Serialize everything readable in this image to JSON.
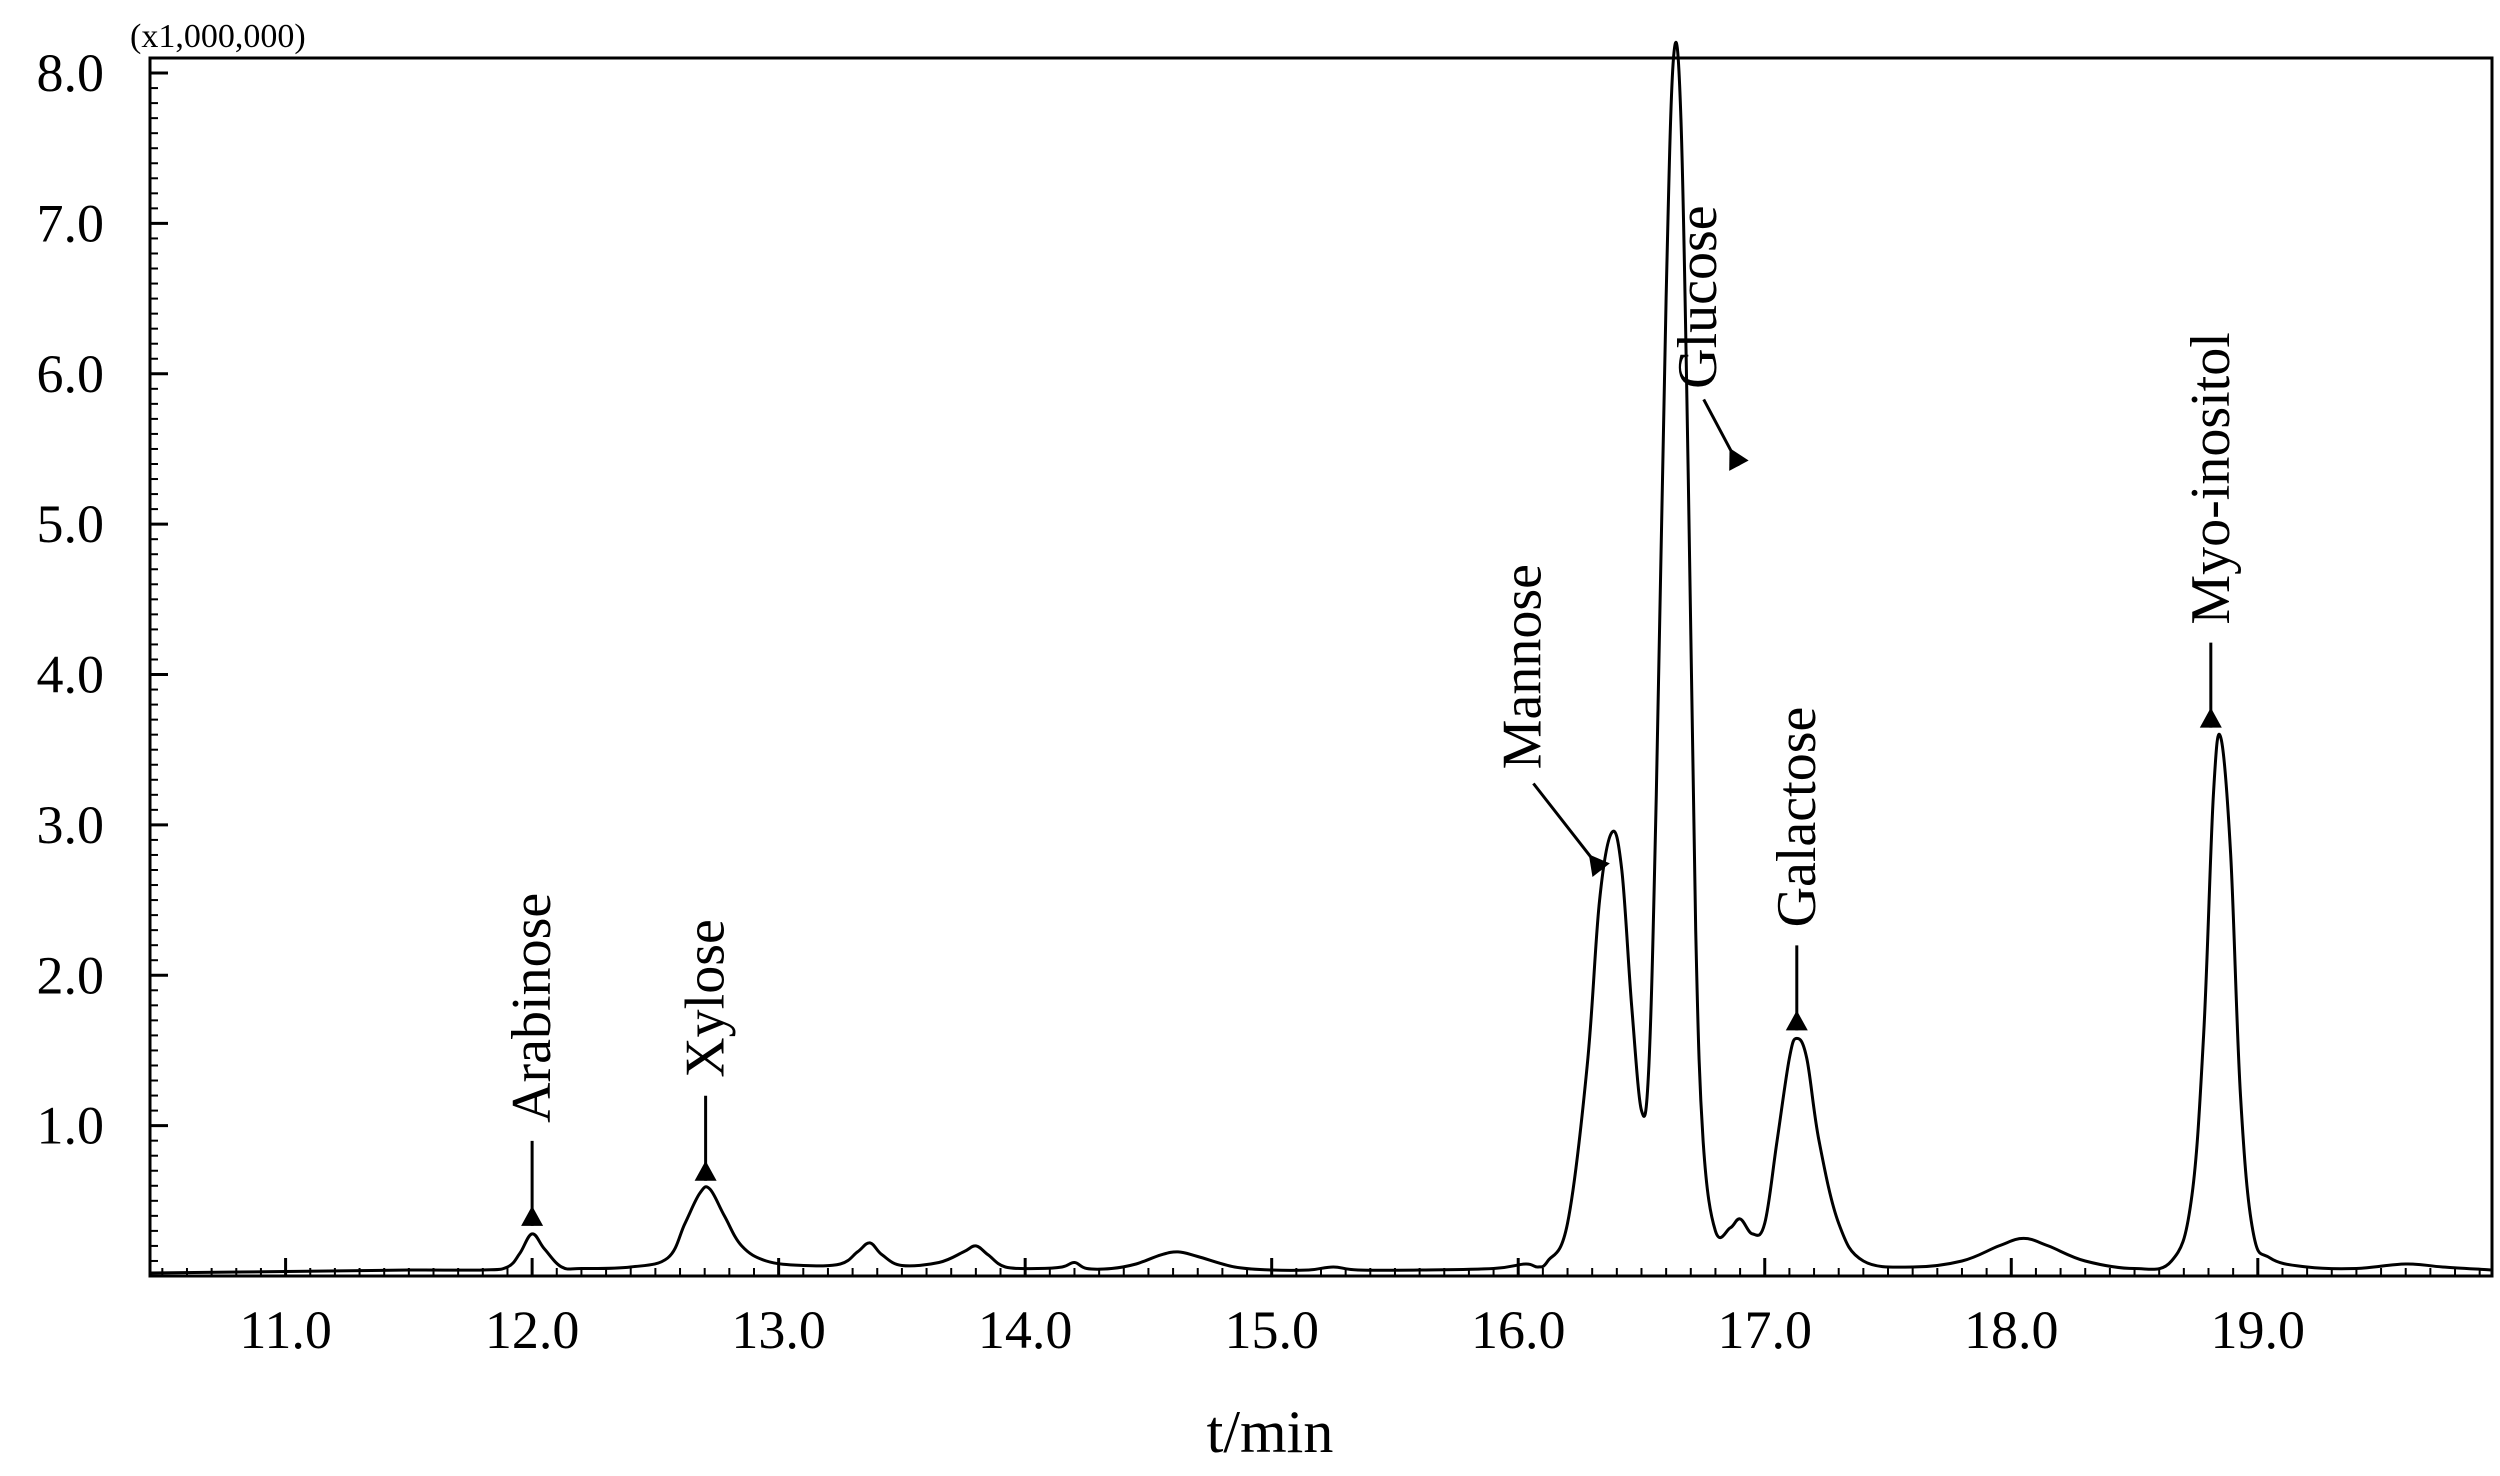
{
  "chart_data": {
    "type": "line",
    "title": "",
    "xlabel": "t/min",
    "ylabel": "",
    "y_multiplier": "(x1,000,000)",
    "xlim": [
      10.45,
      19.95
    ],
    "ylim": [
      0,
      8.1
    ],
    "x_ticks": [
      11.0,
      12.0,
      13.0,
      14.0,
      15.0,
      16.0,
      17.0,
      18.0,
      19.0
    ],
    "x_tick_labels": [
      "11.0",
      "12.0",
      "13.0",
      "14.0",
      "15.0",
      "16.0",
      "17.0",
      "18.0",
      "19.0"
    ],
    "y_ticks": [
      1.0,
      2.0,
      3.0,
      4.0,
      5.0,
      6.0,
      7.0,
      8.0
    ],
    "y_tick_labels": [
      "1.0",
      "2.0",
      "3.0",
      "4.0",
      "5.0",
      "6.0",
      "7.0",
      "8.0"
    ],
    "grid": false,
    "series": [
      {
        "name": "",
        "color": "#000000",
        "x": [
          10.45,
          11.0,
          11.5,
          11.8,
          11.9,
          11.95,
          12.0,
          12.05,
          12.12,
          12.2,
          12.4,
          12.55,
          12.62,
          12.68,
          12.72,
          12.78,
          12.85,
          12.95,
          13.1,
          13.25,
          13.32,
          13.37,
          13.42,
          13.5,
          13.65,
          13.75,
          13.8,
          13.85,
          13.92,
          14.05,
          14.15,
          14.2,
          14.25,
          14.35,
          14.45,
          14.55,
          14.62,
          14.7,
          14.85,
          15.0,
          15.15,
          15.25,
          15.35,
          15.6,
          15.9,
          16.03,
          16.08,
          16.12,
          16.2,
          16.28,
          16.33,
          16.38,
          16.42,
          16.46,
          16.5,
          16.53,
          16.56,
          16.6,
          16.63,
          16.66,
          16.69,
          16.72,
          16.75,
          16.8,
          16.86,
          16.9,
          16.95,
          17.0,
          17.05,
          17.1,
          17.13,
          17.17,
          17.22,
          17.3,
          17.4,
          17.6,
          17.8,
          17.95,
          18.05,
          18.15,
          18.3,
          18.5,
          18.65,
          18.73,
          18.78,
          18.82,
          18.85,
          18.89,
          18.93,
          18.98,
          19.05,
          19.2,
          19.4,
          19.6,
          19.75,
          19.95
        ],
        "y": [
          0.02,
          0.03,
          0.04,
          0.04,
          0.06,
          0.15,
          0.28,
          0.18,
          0.06,
          0.05,
          0.06,
          0.12,
          0.35,
          0.55,
          0.58,
          0.4,
          0.2,
          0.1,
          0.07,
          0.08,
          0.16,
          0.22,
          0.14,
          0.07,
          0.09,
          0.16,
          0.2,
          0.14,
          0.06,
          0.05,
          0.06,
          0.09,
          0.05,
          0.05,
          0.08,
          0.14,
          0.16,
          0.13,
          0.06,
          0.04,
          0.04,
          0.06,
          0.04,
          0.04,
          0.05,
          0.08,
          0.06,
          0.1,
          0.35,
          1.4,
          2.5,
          2.95,
          2.7,
          1.8,
          1.1,
          1.4,
          3.2,
          6.5,
          8.1,
          7.7,
          5.3,
          2.3,
          0.9,
          0.3,
          0.32,
          0.38,
          0.28,
          0.35,
          0.9,
          1.45,
          1.58,
          1.45,
          0.9,
          0.35,
          0.1,
          0.06,
          0.1,
          0.2,
          0.25,
          0.2,
          0.1,
          0.05,
          0.1,
          0.5,
          1.6,
          3.2,
          3.58,
          2.8,
          1.2,
          0.3,
          0.12,
          0.06,
          0.05,
          0.08,
          0.06,
          0.04
        ]
      }
    ],
    "annotations": [
      {
        "text": "Arabinose",
        "x": 12.0,
        "y": 0.28
      },
      {
        "text": "Xylose",
        "x": 12.72,
        "y": 0.58
      },
      {
        "text": "Mannose",
        "x": 16.4,
        "y": 2.95
      },
      {
        "text": "Glucose",
        "x": 16.63,
        "y": 8.1
      },
      {
        "text": "Galactose",
        "x": 17.13,
        "y": 1.58
      },
      {
        "text": "Myo-inositol",
        "x": 18.85,
        "y": 3.58
      }
    ]
  }
}
